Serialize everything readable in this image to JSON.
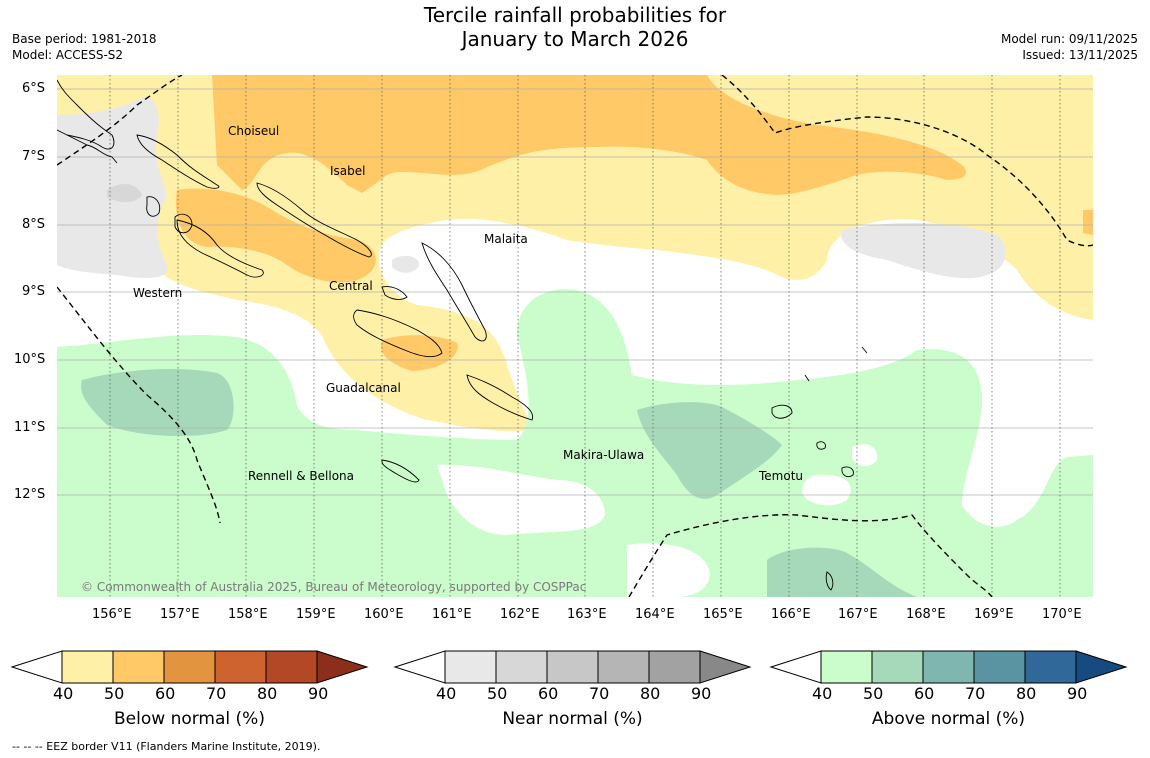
{
  "header": {
    "title_line1": "Tercile rainfall probabilities for",
    "title_line2": "January to March 2026",
    "base_period": "Base period: 1981-2018",
    "model": "Model: ACCESS-S2",
    "model_run": "Model run: 09/11/2025",
    "issued": "Issued: 13/11/2025"
  },
  "map": {
    "lat_labels": [
      "6°S",
      "7°S",
      "8°S",
      "9°S",
      "10°S",
      "11°S",
      "12°S"
    ],
    "lon_labels": [
      "156°E",
      "157°E",
      "158°E",
      "159°E",
      "160°E",
      "161°E",
      "162°E",
      "163°E",
      "164°E",
      "165°E",
      "166°E",
      "167°E",
      "168°E",
      "169°E",
      "170°E"
    ],
    "provinces": {
      "choiseul": "Choiseul",
      "isabel": "Isabel",
      "malaita": "Malaita",
      "central": "Central",
      "western": "Western",
      "guadalcanal": "Guadalcanal",
      "makira": "Makira-Ulawa",
      "temotu": "Temotu",
      "rennell": "Rennell & Bellona"
    },
    "credit": "© Commonwealth of Australia 2025, Bureau of Meteorology, supported by COSPPac"
  },
  "colorbars": {
    "ticks": [
      "40",
      "50",
      "60",
      "70",
      "80",
      "90"
    ],
    "below": {
      "label": "Below normal (%)",
      "colors": [
        "#fff0a8",
        "#fec966",
        "#e3943f",
        "#cf6330",
        "#b24826",
        "#8b2e1a"
      ]
    },
    "near": {
      "label": "Near normal (%)",
      "colors": [
        "#e8e8e8",
        "#d7d7d7",
        "#c7c7c7",
        "#b5b5b5",
        "#a2a2a2",
        "#888888"
      ]
    },
    "above": {
      "label": "Above normal (%)",
      "colors": [
        "#cbfccb",
        "#a6d9b9",
        "#7fb6b0",
        "#5a93a2",
        "#2f6899",
        "#174a80"
      ]
    }
  },
  "footer": {
    "eez_legend": "--  --  -- EEZ border V11 (Flanders Marine Institute, 2019)."
  }
}
